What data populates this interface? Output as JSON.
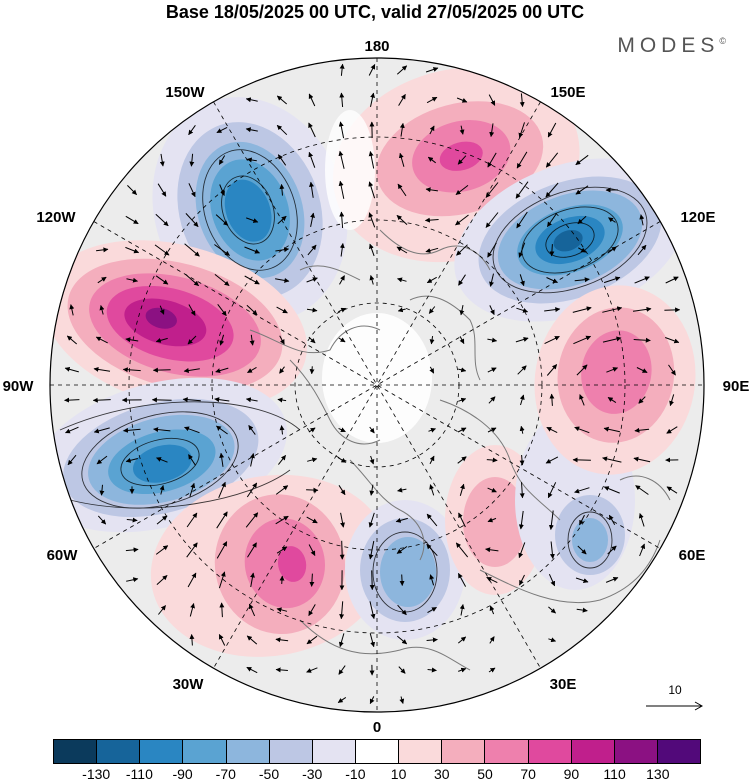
{
  "title": "Base 18/05/2025 00 UTC, valid 27/05/2025 00 UTC",
  "brand": "MODES",
  "brand_mark": "©",
  "lon_labels": {
    "n180": "180",
    "e150": "150E",
    "e120": "120E",
    "e90": "90E",
    "e60": "60E",
    "e30": "30E",
    "s0": "0",
    "w30": "30W",
    "w60": "60W",
    "w90": "90W",
    "w120": "120W",
    "w150": "150W"
  },
  "reference_vector": "10",
  "colorbar": {
    "colors": [
      "#0b3a5c",
      "#16649a",
      "#2a86c2",
      "#5aa3d2",
      "#8db6dd",
      "#bdc7e4",
      "#e4e3f2",
      "#ffffff",
      "#fadadb",
      "#f4aebd",
      "#ee80ad",
      "#e0499e",
      "#c01f8c",
      "#8b1182",
      "#52097a"
    ],
    "ticks": [
      "-130",
      "-110",
      "-90",
      "-70",
      "-50",
      "-30",
      "-10",
      "10",
      "30",
      "50",
      "70",
      "90",
      "110",
      "130"
    ]
  },
  "anomaly_centers": [
    {
      "lon_lat": "160W 55N",
      "sign": "negative",
      "level": "-90"
    },
    {
      "lon_lat": "165E 60N",
      "sign": "positive",
      "level": "70"
    },
    {
      "lon_lat": "130E 55N",
      "sign": "negative",
      "level": "-110"
    },
    {
      "lon_lat": "110W 45N",
      "sign": "positive",
      "level": "110"
    },
    {
      "lon_lat": "80W 45N",
      "sign": "negative",
      "level": "-90"
    },
    {
      "lon_lat": "40W 45N",
      "sign": "positive",
      "level": "70"
    },
    {
      "lon_lat": "5W 55N",
      "sign": "negative",
      "level": "-50"
    },
    {
      "lon_lat": "25E 60N",
      "sign": "positive",
      "level": "30"
    },
    {
      "lon_lat": "55E 45N",
      "sign": "negative",
      "level": "-30"
    },
    {
      "lon_lat": "90E 50N",
      "sign": "positive",
      "level": "50"
    }
  ]
}
